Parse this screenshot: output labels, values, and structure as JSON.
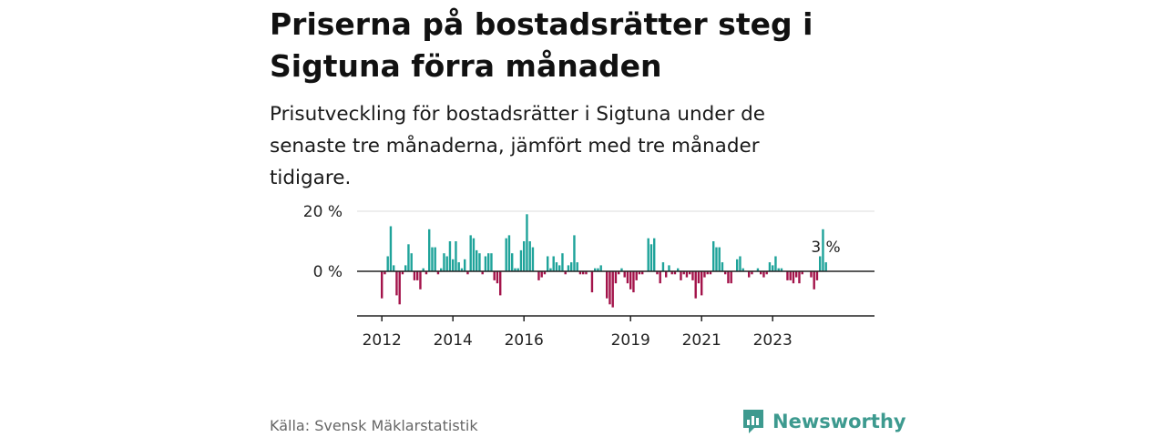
{
  "title": "Priserna på bostadsrätter steg i Sigtuna förra månaden",
  "subtitle": "Prisutveckling för bostadsrätter i Sigtuna under de senaste tre månaderna, jämfört med tre månader tidigare.",
  "source": "Källa: Svensk Mäklarstatistik",
  "brand": "Newsworthy",
  "colors": {
    "positive": "#1fa39a",
    "negative": "#a3134a",
    "gridline": "#dddddd",
    "axis": "#222222",
    "brand": "#3d9a8f"
  },
  "chart_data": {
    "type": "bar",
    "start": "2012-01",
    "unit": "%",
    "ylim": [
      -14,
      20
    ],
    "yticks": [
      {
        "value": 20,
        "label": "20 %"
      },
      {
        "value": 0,
        "label": "0 %"
      }
    ],
    "xticks": [
      {
        "year": 2012,
        "label": "2012"
      },
      {
        "year": 2014,
        "label": "2014"
      },
      {
        "year": 2016,
        "label": "2016"
      },
      {
        "year": 2019,
        "label": "2019"
      },
      {
        "year": 2021,
        "label": "2021"
      },
      {
        "year": 2023,
        "label": "2023"
      }
    ],
    "annotation": {
      "label": "3 %",
      "value": 3
    },
    "values": [
      -9,
      -1,
      5,
      15,
      2,
      -8,
      -11,
      -1,
      2,
      9,
      6,
      -3,
      -3,
      -6,
      1,
      -1,
      14,
      8,
      8,
      -1,
      1,
      6,
      5,
      10,
      4,
      10,
      3,
      1,
      4,
      -1,
      12,
      11,
      7,
      6,
      -1,
      5,
      6,
      6,
      -3,
      -4,
      -8,
      0,
      11,
      12,
      6,
      1,
      1,
      7,
      10,
      19,
      10,
      8,
      0,
      -3,
      -2,
      -1,
      5,
      1,
      5,
      3,
      2,
      6,
      -1,
      2,
      3,
      12,
      3,
      -1,
      -1,
      -1,
      0,
      -7,
      1,
      1,
      2,
      0,
      -9,
      -11,
      -12,
      -4,
      -1,
      1,
      -2,
      -4,
      -6,
      -7,
      -3,
      -1,
      -1,
      0,
      11,
      9,
      11,
      -1,
      -4,
      3,
      -2,
      2,
      -1,
      -1,
      1,
      -3,
      -1,
      -2,
      -1,
      -3,
      -9,
      -4,
      -8,
      -2,
      -1,
      -1,
      10,
      8,
      8,
      3,
      -1,
      -4,
      -4,
      0,
      4,
      5,
      1,
      0,
      -2,
      -1,
      0,
      1,
      -1,
      -2,
      -1,
      3,
      2,
      5,
      1,
      1,
      0,
      -3,
      -3,
      -4,
      -2,
      -4,
      -1,
      0,
      0,
      -2,
      -6,
      -3,
      5,
      14,
      3
    ]
  }
}
